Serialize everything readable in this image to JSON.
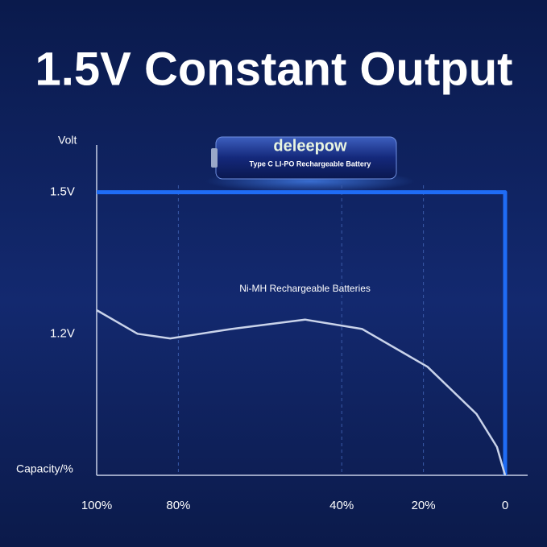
{
  "chart_data": {
    "type": "line",
    "title": "1.5V Constant Output",
    "y_label": "Volt",
    "x_label": "Capacity/%",
    "xlim": [
      100,
      0
    ],
    "xticks": [
      {
        "value": 100,
        "label": "100%"
      },
      {
        "value": 80,
        "label": "80%"
      },
      {
        "value": 40,
        "label": "40%"
      },
      {
        "value": 20,
        "label": "20%"
      },
      0
    ],
    "ylim": [
      0.9,
      1.6
    ],
    "yticks": [
      {
        "value": 1.5,
        "label": "1.5V"
      },
      {
        "value": 1.2,
        "label": "1.2V"
      }
    ],
    "grid": true,
    "series": [
      {
        "color": "#1f6cf5",
        "x": [
          100,
          0,
          0
        ],
        "values": [
          1.5,
          1.5,
          0.9
        ]
      },
      {
        "name": "Ni-MH Rechargeable Batteries",
        "color": "#c9d3ea",
        "x": [
          100,
          90,
          82,
          67,
          49,
          35,
          19,
          7,
          2,
          0
        ],
        "values": [
          1.25,
          1.2,
          1.19,
          1.21,
          1.23,
          1.21,
          1.13,
          1.03,
          0.96,
          0.9
        ]
      }
    ]
  },
  "product": {
    "brand": "deleepow",
    "label": "Type C LI-PO Rechargeable Battery"
  }
}
